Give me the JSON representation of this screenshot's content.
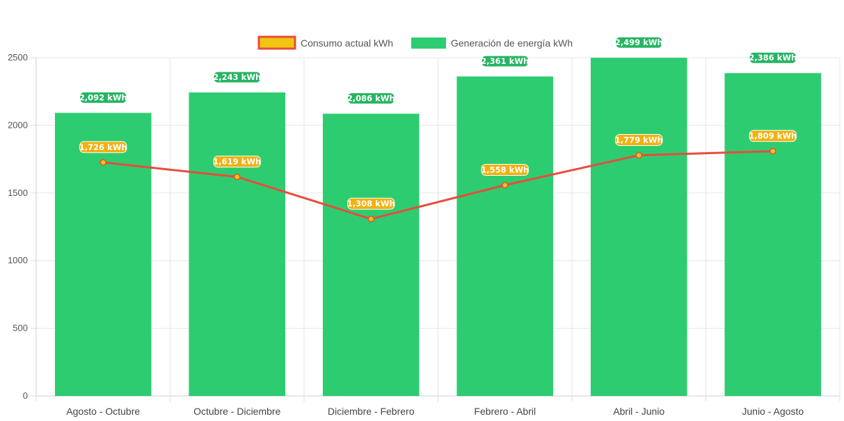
{
  "chart_data": {
    "type": "bar",
    "title": "",
    "xlabel": "",
    "ylabel": "",
    "ylim": [
      0,
      2500
    ],
    "yticks": [
      0,
      500,
      1000,
      1500,
      2000,
      2500
    ],
    "grid": true,
    "legend_position": "top-center",
    "categories": [
      "Agosto - Octubre",
      "Octubre - Diciembre",
      "Diciembre - Febrero",
      "Febrero - Abril",
      "Abril - Junio",
      "Junio - Agosto"
    ],
    "series": [
      {
        "name": "Consumo actual kWh",
        "kind": "line",
        "color": "#e74c3c",
        "fill": "#f1c40f",
        "label_color": "#f1b10f",
        "values": [
          1726,
          1619,
          1308,
          1558,
          1779,
          1809
        ],
        "labels": [
          "1,726 kWh",
          "1,619 kWh",
          "1,308 kWh",
          "1,558 kWh",
          "1,779 kWh",
          "1,809 kWh"
        ]
      },
      {
        "name": "Generación de energía kWh",
        "kind": "bar",
        "color": "#2ecc71",
        "label_color": "#27b463",
        "values": [
          2092,
          2243,
          2086,
          2361,
          2499,
          2386
        ],
        "labels": [
          "2,092 kWh",
          "2,243 kWh",
          "2,086 kWh",
          "2,361 kWh",
          "2,499 kWh",
          "2,386 kWh"
        ]
      }
    ]
  }
}
